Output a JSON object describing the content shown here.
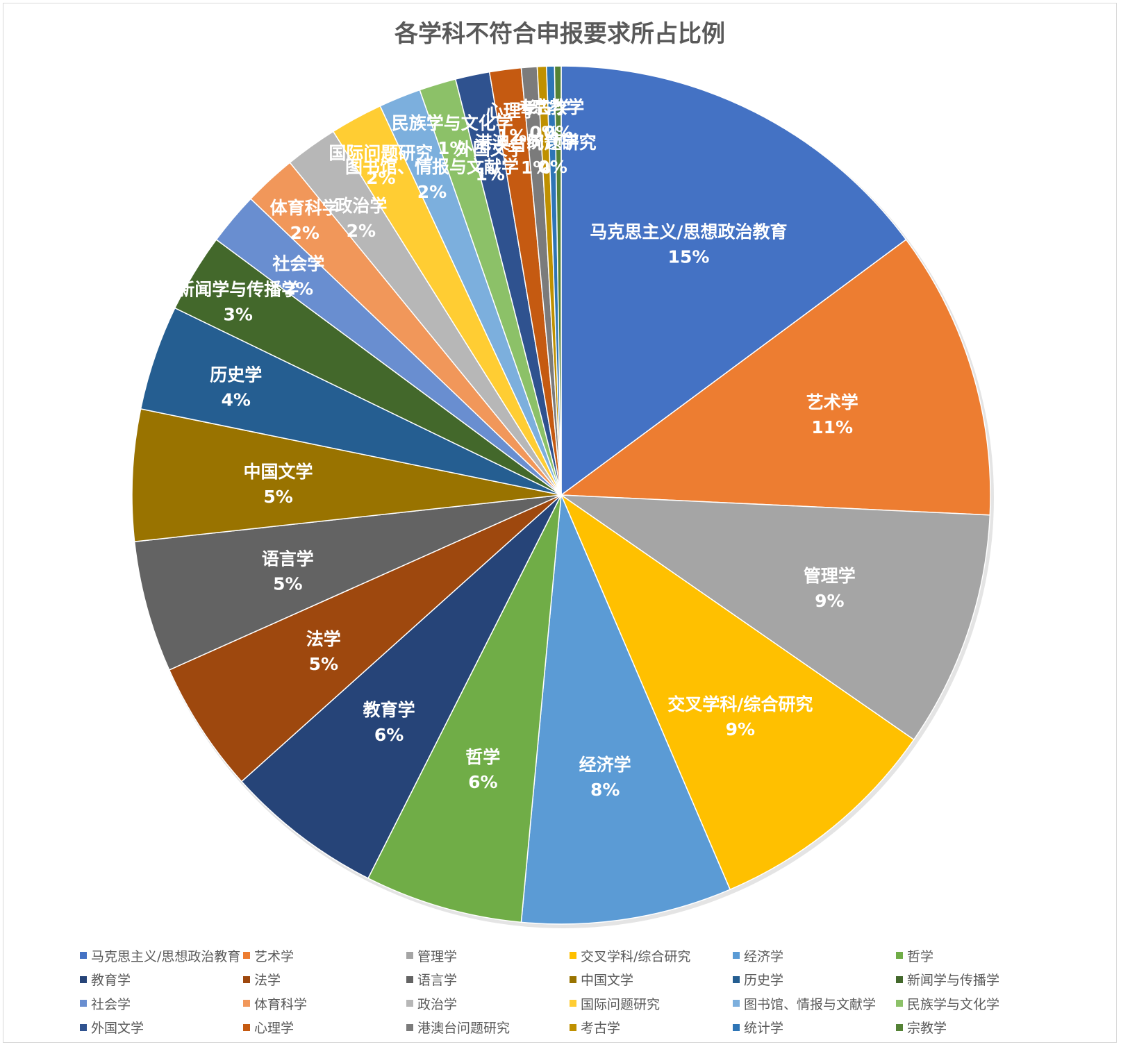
{
  "chart_data": {
    "type": "pie",
    "title": "各学科不符合申报要求所占比例",
    "legend_position": "bottom",
    "slices": [
      {
        "name": "马克思主义/思想政治教育",
        "value": 15,
        "pct_label": "15%",
        "color": "#4472C4"
      },
      {
        "name": "艺术学",
        "value": 11,
        "pct_label": "11%",
        "color": "#ED7D31"
      },
      {
        "name": "管理学",
        "value": 9,
        "pct_label": "9%",
        "color": "#A5A5A5"
      },
      {
        "name": "交叉学科/综合研究",
        "value": 9,
        "pct_label": "9%",
        "color": "#FFC000"
      },
      {
        "name": "经济学",
        "value": 8,
        "pct_label": "8%",
        "color": "#5B9BD5"
      },
      {
        "name": "哲学",
        "value": 6,
        "pct_label": "6%",
        "color": "#70AD47"
      },
      {
        "name": "教育学",
        "value": 6,
        "pct_label": "6%",
        "color": "#264478"
      },
      {
        "name": "法学",
        "value": 5,
        "pct_label": "5%",
        "color": "#9E480E"
      },
      {
        "name": "语言学",
        "value": 5,
        "pct_label": "5%",
        "color": "#636363"
      },
      {
        "name": "中国文学",
        "value": 5,
        "pct_label": "5%",
        "color": "#997300"
      },
      {
        "name": "历史学",
        "value": 4,
        "pct_label": "4%",
        "color": "#255E91"
      },
      {
        "name": "新闻学与传播学",
        "value": 3,
        "pct_label": "3%",
        "color": "#43682B"
      },
      {
        "name": "社会学",
        "value": 2,
        "pct_label": "2%",
        "color": "#698ED0"
      },
      {
        "name": "体育科学",
        "value": 2,
        "pct_label": "2%",
        "color": "#F1975A"
      },
      {
        "name": "政治学",
        "value": 2,
        "pct_label": "2%",
        "color": "#B7B7B7"
      },
      {
        "name": "国际问题研究",
        "value": 2,
        "pct_label": "2%",
        "color": "#FFCD33"
      },
      {
        "name": "图书馆、情报与文献学",
        "value": 1.6,
        "pct_label": "2%",
        "color": "#7CAFDD"
      },
      {
        "name": "民族学与文化学",
        "value": 1.4,
        "pct_label": "1%",
        "color": "#8CC168"
      },
      {
        "name": "外国文学",
        "value": 1.3,
        "pct_label": "1%",
        "color": "#2F528F"
      },
      {
        "name": "心理学",
        "value": 1.2,
        "pct_label": "1%",
        "color": "#C55A11"
      },
      {
        "name": "港澳台问题研究",
        "value": 0.6,
        "pct_label": "1%",
        "color": "#7B7B7B"
      },
      {
        "name": "考古学",
        "value": 0.35,
        "pct_label": "0%",
        "color": "#BF9000"
      },
      {
        "name": "统计学",
        "value": 0.3,
        "pct_label": "0%",
        "color": "#2E75B6"
      },
      {
        "name": "宗教学",
        "value": 0.25,
        "pct_label": "0%",
        "color": "#548235"
      }
    ]
  }
}
